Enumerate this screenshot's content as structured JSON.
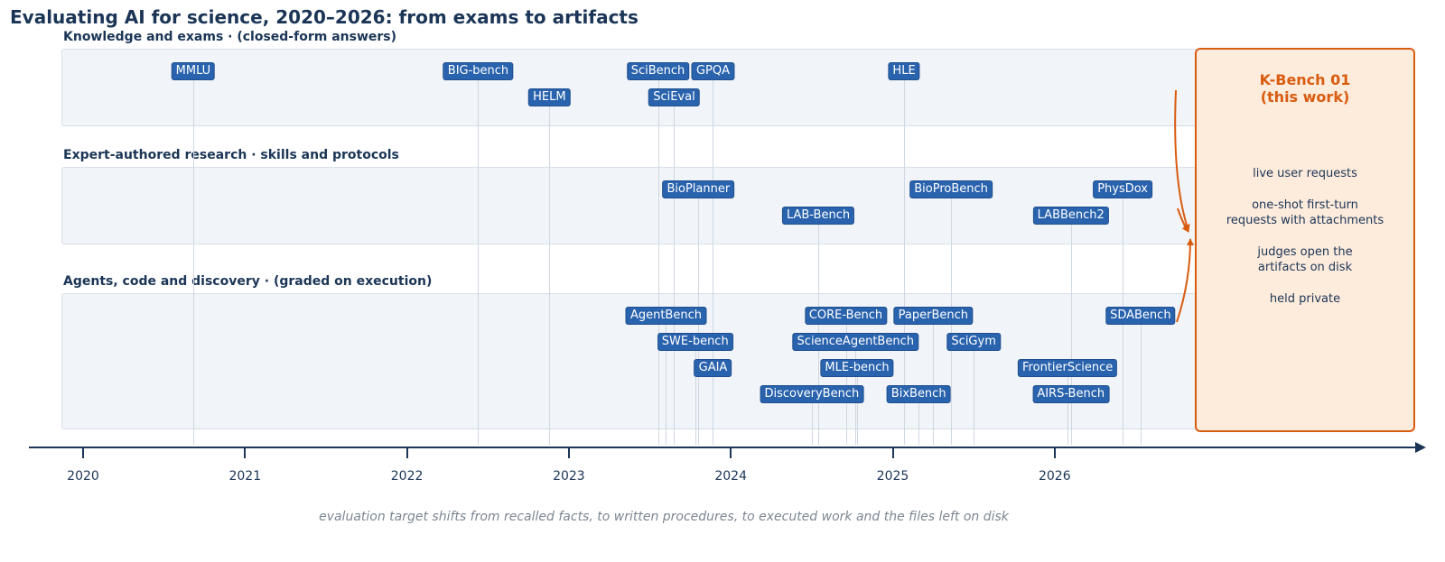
{
  "title": "Evaluating AI for science, 2020–2026: from exams to artifacts",
  "bands": [
    {
      "label": "Knowledge and exams  ·  (closed-form answers)"
    },
    {
      "label": "Expert-authored research  ·  skills and protocols"
    },
    {
      "label": "Agents, code and discovery  ·  (graded on execution)"
    }
  ],
  "axis": {
    "years": [
      "2020",
      "2021",
      "2022",
      "2023",
      "2024",
      "2025",
      "2026"
    ]
  },
  "benchmarks": [
    {
      "name": "MMLU",
      "date": 2020.68,
      "band": 0,
      "row": 0
    },
    {
      "name": "BIG-bench",
      "date": 2022.44,
      "band": 0,
      "row": 0
    },
    {
      "name": "HELM",
      "date": 2022.88,
      "band": 0,
      "row": 1
    },
    {
      "name": "SciBench",
      "date": 2023.55,
      "band": 0,
      "row": 0
    },
    {
      "name": "SciEval",
      "date": 2023.65,
      "band": 0,
      "row": 1
    },
    {
      "name": "GPQA",
      "date": 2023.89,
      "band": 0,
      "row": 0
    },
    {
      "name": "HLE",
      "date": 2025.07,
      "band": 0,
      "row": 0
    },
    {
      "name": "BioPlanner",
      "date": 2023.8,
      "band": 1,
      "row": 0
    },
    {
      "name": "LAB-Bench",
      "date": 2024.54,
      "band": 1,
      "row": 1
    },
    {
      "name": "BioProBench",
      "date": 2025.36,
      "band": 1,
      "row": 0
    },
    {
      "name": "LABBench2",
      "date": 2026.1,
      "band": 1,
      "row": 1
    },
    {
      "name": "PhysDox",
      "date": 2026.42,
      "band": 1,
      "row": 0
    },
    {
      "name": "AgentBench",
      "date": 2023.6,
      "band": 2,
      "row": 0
    },
    {
      "name": "SWE-bench",
      "date": 2023.78,
      "band": 2,
      "row": 1
    },
    {
      "name": "GAIA",
      "date": 2023.89,
      "band": 2,
      "row": 2
    },
    {
      "name": "DiscoveryBench",
      "date": 2024.5,
      "band": 2,
      "row": 3
    },
    {
      "name": "CORE-Bench",
      "date": 2024.71,
      "band": 2,
      "row": 0
    },
    {
      "name": "ScienceAgentBench",
      "date": 2024.77,
      "band": 2,
      "row": 1
    },
    {
      "name": "MLE-bench",
      "date": 2024.78,
      "band": 2,
      "row": 2
    },
    {
      "name": "BixBench",
      "date": 2025.16,
      "band": 2,
      "row": 3
    },
    {
      "name": "PaperBench",
      "date": 2025.25,
      "band": 2,
      "row": 0
    },
    {
      "name": "SciGym",
      "date": 2025.5,
      "band": 2,
      "row": 1
    },
    {
      "name": "FrontierScience",
      "date": 2026.08,
      "band": 2,
      "row": 2
    },
    {
      "name": "AIRS-Bench",
      "date": 2026.1,
      "band": 2,
      "row": 3
    },
    {
      "name": "SDABench",
      "date": 2026.53,
      "band": 2,
      "row": 0
    }
  ],
  "kbench": {
    "title_line1": "K-Bench 01",
    "title_line2": "(this work)",
    "lines": [
      "live user requests",
      "one-shot first-turn",
      "requests with attachments",
      "judges open the",
      "artifacts on disk",
      "held private"
    ]
  },
  "caption": "evaluation target shifts from recalled facts, to written procedures, to executed work and the files left on disk",
  "colors": {
    "chip": "#2a63ad",
    "accent": "#d85c10",
    "text": "#1b3556",
    "band": "#f1f4f8"
  }
}
